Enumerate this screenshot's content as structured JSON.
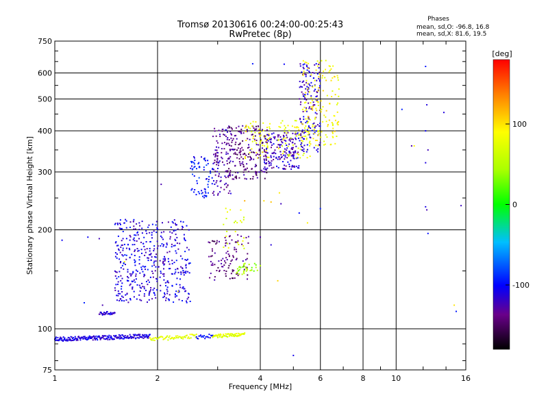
{
  "chart_data": {
    "type": "scatter",
    "title": "Tromsø 20130616 00:24:00-00:25:43",
    "subtitle": "RwPretec (8p)",
    "xlabel": "Frequency [MHz]",
    "ylabel": "Stationary phase Virtual Height [km]",
    "x_scale": "log",
    "y_scale": "log",
    "xlim": [
      1,
      16
    ],
    "ylim": [
      75,
      750
    ],
    "x_ticks": [
      1,
      2,
      4,
      6,
      8,
      10,
      16
    ],
    "x_tick_labels": [
      "1",
      "2",
      "4",
      "6",
      "8",
      "10",
      "16"
    ],
    "y_ticks": [
      75,
      100,
      200,
      300,
      400,
      500,
      600,
      750
    ],
    "y_tick_labels": [
      "75",
      "100",
      "200",
      "300",
      "400",
      "500",
      "600",
      "750"
    ],
    "grid": true,
    "stats": {
      "heading": "Phases",
      "line1": "mean, sd,O: -96.8, 16.8",
      "line2": "mean, sd,X: 81.6, 19.5"
    },
    "colorbar": {
      "label": "[deg]",
      "range": [
        -180,
        180
      ],
      "ticks": [
        100,
        0,
        -100
      ],
      "tick_labels": [
        "100",
        "0",
        "-100"
      ]
    },
    "traces": [
      {
        "type": "line",
        "x0": 1.0,
        "x1": 1.9,
        "y0": 93,
        "y1": 95,
        "phase": -110,
        "n": 220,
        "jitter_y": 0.015
      },
      {
        "type": "line",
        "x0": 1.9,
        "x1": 2.6,
        "y0": 93,
        "y1": 95,
        "phase": 75,
        "n": 60,
        "jitter_y": 0.015
      },
      {
        "type": "line",
        "x0": 2.6,
        "x1": 2.9,
        "y0": 94,
        "y1": 95,
        "phase": -100,
        "n": 20,
        "jitter_y": 0.015
      },
      {
        "type": "line",
        "x0": 2.9,
        "x1": 3.6,
        "y0": 95,
        "y1": 96,
        "phase": 75,
        "n": 70,
        "jitter_y": 0.012
      },
      {
        "type": "line",
        "x0": 1.35,
        "x1": 1.5,
        "y0": 111,
        "y1": 112,
        "phase": -115,
        "n": 30,
        "jitter_y": 0.012
      },
      {
        "type": "blob",
        "x0": 1.5,
        "x1": 2.5,
        "y0": 120,
        "y1": 215,
        "phase": -110,
        "n": 460
      },
      {
        "type": "blob",
        "x0": 2.5,
        "x1": 2.9,
        "y0": 250,
        "y1": 335,
        "phase": -95,
        "n": 70
      },
      {
        "type": "blob",
        "x0": 2.9,
        "x1": 3.3,
        "y0": 255,
        "y1": 410,
        "phase": -130,
        "n": 110
      },
      {
        "type": "blob",
        "x0": 3.2,
        "x1": 4.2,
        "y0": 285,
        "y1": 415,
        "phase": -140,
        "n": 200
      },
      {
        "type": "blob",
        "x0": 3.6,
        "x1": 4.3,
        "y0": 330,
        "y1": 430,
        "phase": 85,
        "n": 60
      },
      {
        "type": "blob",
        "x0": 4.1,
        "x1": 5.2,
        "y0": 305,
        "y1": 395,
        "phase": -120,
        "n": 180
      },
      {
        "type": "blob",
        "x0": 4.5,
        "x1": 5.6,
        "y0": 330,
        "y1": 430,
        "phase": 80,
        "n": 70
      },
      {
        "type": "blob",
        "x0": 5.2,
        "x1": 6.0,
        "y0": 345,
        "y1": 640,
        "phase": -115,
        "n": 160
      },
      {
        "type": "blob",
        "x0": 5.3,
        "x1": 6.8,
        "y0": 360,
        "y1": 660,
        "phase": 90,
        "n": 150
      },
      {
        "type": "blob",
        "x0": 2.8,
        "x1": 3.7,
        "y0": 140,
        "y1": 195,
        "phase": -140,
        "n": 100
      },
      {
        "type": "blob",
        "x0": 3.1,
        "x1": 3.6,
        "y0": 175,
        "y1": 235,
        "phase": 70,
        "n": 25
      },
      {
        "type": "blob",
        "x0": 3.4,
        "x1": 4.0,
        "y0": 146,
        "y1": 158,
        "phase": 40,
        "n": 35
      },
      {
        "type": "scatter",
        "points": [
          [
            1.05,
            186
          ],
          [
            1.25,
            190
          ],
          [
            1.35,
            188
          ],
          [
            1.22,
            120
          ],
          [
            1.38,
            118
          ],
          [
            2.05,
            275
          ],
          [
            3.8,
            640
          ],
          [
            4.7,
            638
          ],
          [
            12.2,
            628
          ],
          [
            11.1,
            360
          ],
          [
            12.2,
            320
          ],
          [
            12.2,
            235
          ],
          [
            12.3,
            230
          ],
          [
            13.8,
            455
          ],
          [
            15.0,
            113
          ],
          [
            15.5,
            237
          ],
          [
            4.6,
            240
          ],
          [
            5.2,
            225
          ],
          [
            6.0,
            232
          ],
          [
            4.3,
            180
          ],
          [
            4.0,
            190
          ],
          [
            10.4,
            465
          ],
          [
            12.4,
            195
          ],
          [
            12.2,
            400
          ],
          [
            12.3,
            480
          ],
          [
            12.4,
            350
          ],
          [
            5.0,
            83
          ]
        ],
        "phase": -110
      },
      {
        "type": "scatter",
        "points": [
          [
            1.6,
            160
          ],
          [
            2.3,
            130
          ],
          [
            4.3,
            243
          ],
          [
            4.55,
            259
          ],
          [
            5.5,
            210
          ],
          [
            11.3,
            360
          ],
          [
            14.8,
            118
          ],
          [
            3.6,
            245
          ],
          [
            4.1,
            245
          ],
          [
            4.5,
            140
          ]
        ],
        "phase": 100
      }
    ]
  }
}
